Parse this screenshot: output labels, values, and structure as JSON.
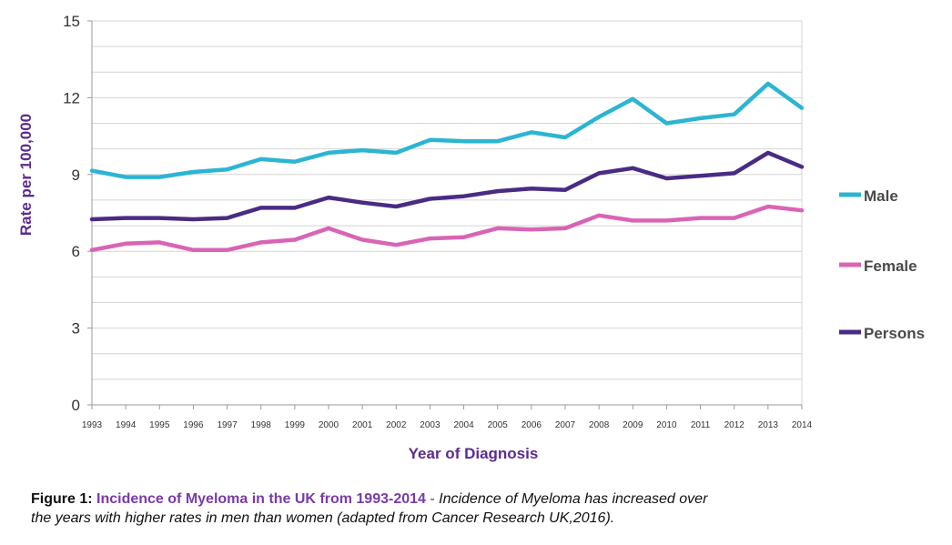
{
  "chart_data": {
    "type": "line",
    "categories": [
      "1993",
      "1994",
      "1995",
      "1996",
      "1997",
      "1998",
      "1999",
      "2000",
      "2001",
      "2002",
      "2003",
      "2004",
      "2005",
      "2006",
      "2007",
      "2008",
      "2009",
      "2010",
      "2011",
      "2012",
      "2013",
      "2014"
    ],
    "series": [
      {
        "name": "Male",
        "color": "#2bb5d3",
        "values": [
          9.15,
          8.9,
          8.9,
          9.1,
          9.2,
          9.6,
          9.5,
          9.85,
          9.95,
          9.85,
          10.35,
          10.3,
          10.3,
          10.65,
          10.45,
          11.25,
          11.95,
          11.0,
          11.2,
          11.35,
          12.55,
          11.6
        ]
      },
      {
        "name": "Female",
        "color": "#d964b5",
        "values": [
          6.05,
          6.3,
          6.35,
          6.05,
          6.05,
          6.35,
          6.45,
          6.9,
          6.45,
          6.25,
          6.5,
          6.55,
          6.9,
          6.85,
          6.9,
          7.4,
          7.2,
          7.2,
          7.3,
          7.3,
          7.75,
          7.6
        ]
      },
      {
        "name": "Persons",
        "color": "#4a2b84",
        "values": [
          7.25,
          7.3,
          7.3,
          7.25,
          7.3,
          7.7,
          7.7,
          8.1,
          7.9,
          7.75,
          8.05,
          8.15,
          8.35,
          8.45,
          8.4,
          9.05,
          9.25,
          8.85,
          8.95,
          9.05,
          9.85,
          9.3
        ]
      }
    ],
    "ylim": [
      0,
      15
    ],
    "yticks": [
      0,
      3,
      6,
      9,
      12,
      15
    ],
    "xlabel": "Year of Diagnosis",
    "ylabel": "Rate per 100,000",
    "grid": true,
    "legend_position": "right",
    "axis_label_color": "#5b2c8f"
  },
  "caption": {
    "label": "Figure 1:",
    "title": "Incidence of Myeloma in the UK from 1993-2014",
    "separator": " -  ",
    "description_line1": "Incidence of Myeloma has increased over",
    "description_line2": "the years with higher rates in men than women (adapted from Cancer Research UK,2016)."
  }
}
